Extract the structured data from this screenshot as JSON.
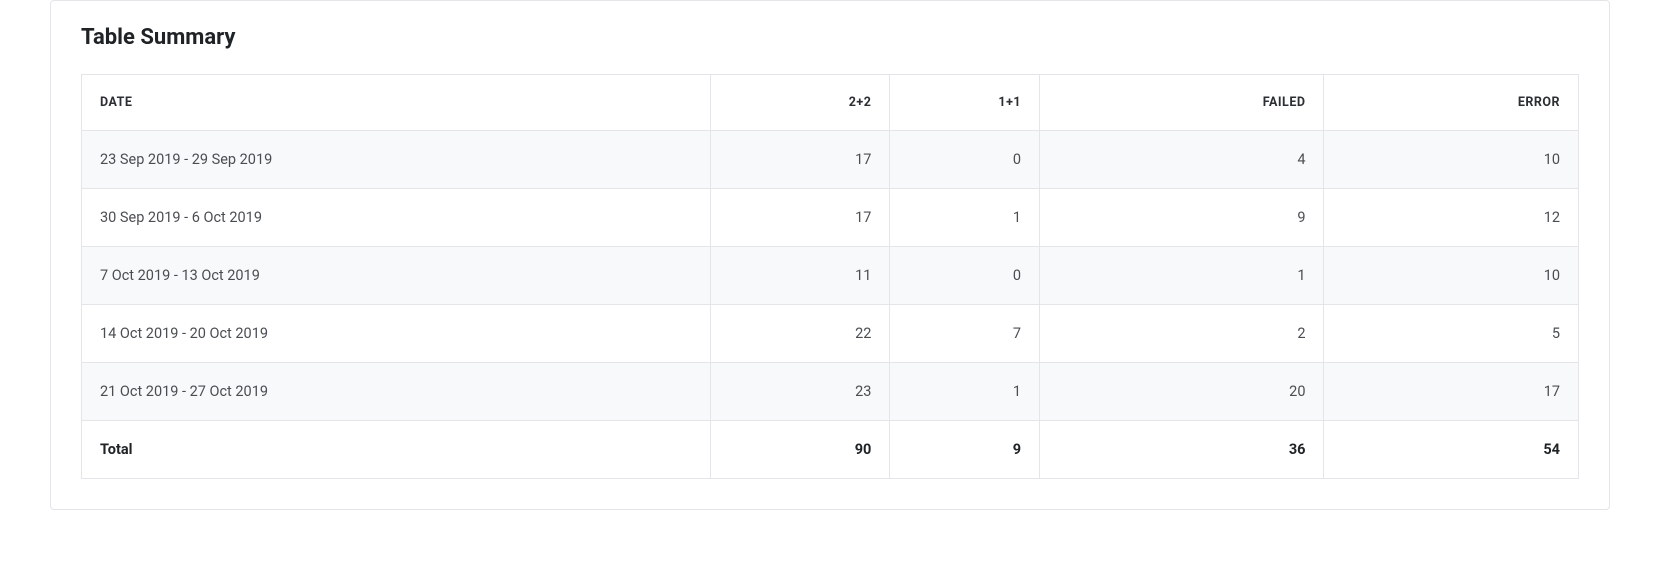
{
  "panel": {
    "title": "Table Summary"
  },
  "table": {
    "columns": {
      "date": "DATE",
      "c2p2": "2+2",
      "c1p1": "1+1",
      "failed": "FAILED",
      "error": "ERROR"
    },
    "rows": [
      {
        "date": "23 Sep 2019 - 29 Sep 2019",
        "c2p2": "17",
        "c1p1": "0",
        "failed": "4",
        "error": "10"
      },
      {
        "date": "30 Sep 2019 - 6 Oct 2019",
        "c2p2": "17",
        "c1p1": "1",
        "failed": "9",
        "error": "12"
      },
      {
        "date": "7 Oct 2019 - 13 Oct 2019",
        "c2p2": "11",
        "c1p1": "0",
        "failed": "1",
        "error": "10"
      },
      {
        "date": "14 Oct 2019 - 20 Oct 2019",
        "c2p2": "22",
        "c1p1": "7",
        "failed": "2",
        "error": "5"
      },
      {
        "date": "21 Oct 2019 - 27 Oct 2019",
        "c2p2": "23",
        "c1p1": "1",
        "failed": "20",
        "error": "17"
      }
    ],
    "total": {
      "label": "Total",
      "c2p2": "90",
      "c1p1": "9",
      "failed": "36",
      "error": "54"
    }
  }
}
